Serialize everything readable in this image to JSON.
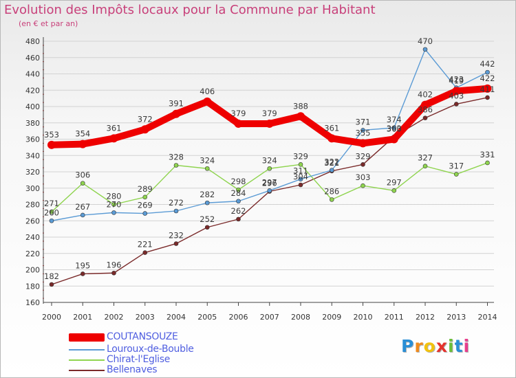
{
  "header": {
    "title": "Evolution des Impôts locaux pour la Commune par Habitant",
    "subtitle": "(en € et par an)"
  },
  "logo": {
    "text": "Proxiti",
    "colors": [
      "#2a8fd6",
      "#f08a1c",
      "#f2c20f",
      "#e5322d",
      "#6bbf3a",
      "#2a8fd6",
      "#e83e8c"
    ]
  },
  "legend": {
    "items": [
      "COUTANSOUZE",
      "Louroux-de-Bouble",
      "Chirat-l'Eglise",
      "Bellenaves"
    ]
  },
  "chart_data": {
    "type": "line",
    "title": "Evolution des Impôts locaux pour la Commune par Habitant",
    "subtitle": "(en € et par an)",
    "x": [
      "2000",
      "2001",
      "2002",
      "2003",
      "2004",
      "2005",
      "2006",
      "2007",
      "2008",
      "2009",
      "2010",
      "2011",
      "2012",
      "2013",
      "2014"
    ],
    "ylim": [
      160,
      480
    ],
    "yticks": [
      160,
      180,
      200,
      220,
      240,
      260,
      280,
      300,
      320,
      340,
      360,
      380,
      400,
      420,
      440,
      460,
      480
    ],
    "grid": "horizontal",
    "legend_position": "bottom-left",
    "series": [
      {
        "name": "COUTANSOUZE",
        "color": "#ee0000",
        "values": [
          353,
          354,
          361,
          372,
          391,
          406,
          379,
          379,
          388,
          361,
          355,
          360,
          402,
          419,
          422
        ],
        "labels": [
          "353",
          "354",
          "361",
          "372",
          "391",
          "406",
          "379",
          "379",
          "388",
          "361",
          "355",
          "360",
          "402",
          "419",
          "422"
        ]
      },
      {
        "name": "Louroux-de-Bouble",
        "color": "#5b9bd5",
        "values": [
          260,
          267,
          270,
          269,
          272,
          282,
          284,
          297,
          311,
          322,
          371,
          374,
          470,
          423,
          442
        ],
        "labels": [
          "260",
          "267",
          "270",
          "269",
          "272",
          "282",
          "284",
          "297",
          "311",
          "322",
          "371",
          "374",
          "470",
          "423",
          "442"
        ]
      },
      {
        "name": "Chirat-l'Eglise",
        "color": "#8fd44f",
        "values": [
          271,
          306,
          280,
          289,
          328,
          324,
          298,
          324,
          329,
          286,
          303,
          297,
          327,
          317,
          331
        ],
        "labels": [
          "271",
          "306",
          "280",
          "289",
          "328",
          "324",
          "298",
          "324",
          "329",
          "286",
          "303",
          "297",
          "327",
          "317",
          "331"
        ]
      },
      {
        "name": "Bellenaves",
        "color": "#7a2a2a",
        "values": [
          182,
          195,
          196,
          221,
          232,
          252,
          262,
          296,
          304,
          321,
          329,
          363,
          386,
          403,
          411
        ],
        "labels": [
          "182",
          "195",
          "196",
          "221",
          "232",
          "252",
          "262",
          "296",
          "304",
          "321",
          "329",
          "363",
          "386",
          "403",
          "411"
        ]
      }
    ]
  }
}
